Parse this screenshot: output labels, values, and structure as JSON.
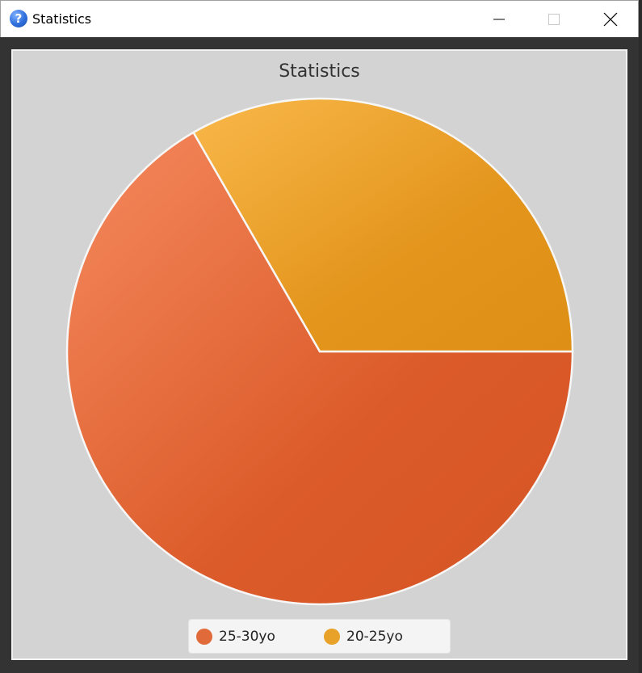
{
  "window": {
    "title": "Statistics",
    "icon": "help-question-icon",
    "controls": [
      "minimize-icon",
      "maximize-icon",
      "close-icon"
    ]
  },
  "chart_data": {
    "type": "pie",
    "title": "Statistics",
    "categories": [
      "25-30yo",
      "20-25yo"
    ],
    "values": [
      2,
      1
    ],
    "colors": [
      "#e06a3a",
      "#e8a22a"
    ],
    "legend_position": "bottom"
  }
}
